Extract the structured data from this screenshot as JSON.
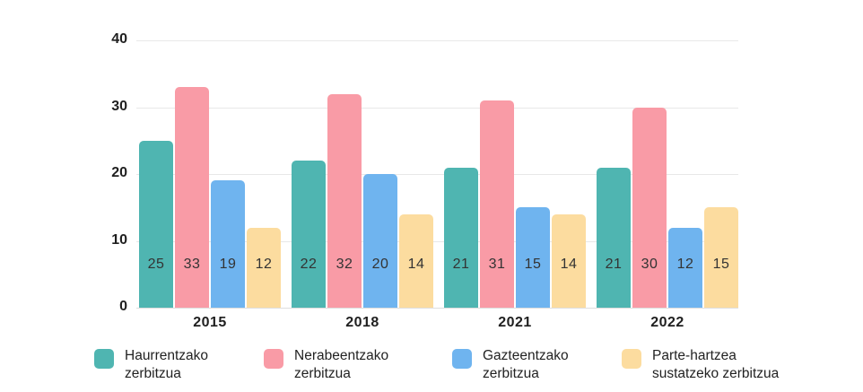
{
  "chart_data": {
    "type": "bar",
    "title": "",
    "xlabel": "",
    "ylabel": "",
    "categories": [
      "2015",
      "2018",
      "2021",
      "2022"
    ],
    "series": [
      {
        "name": "Haurrentzako zerbitzua",
        "color": "#4FB5B1",
        "values": [
          25,
          22,
          21,
          21
        ]
      },
      {
        "name": "Nerabeentzako zerbitzua",
        "color": "#F99BA6",
        "values": [
          33,
          32,
          31,
          30
        ]
      },
      {
        "name": "Gazteentzako zerbitzua",
        "color": "#6FB4EF",
        "values": [
          19,
          20,
          15,
          12
        ]
      },
      {
        "name": "Parte-hartzea sustatzeko zerbitzua",
        "color": "#FCDC9F",
        "values": [
          12,
          14,
          14,
          15
        ]
      }
    ],
    "ylim": [
      0,
      40
    ],
    "yticks": [
      0,
      10,
      20,
      30,
      40
    ],
    "grid": true,
    "bar_value_labels_shown": true,
    "legend_position": "bottom"
  },
  "legend": {
    "items": [
      {
        "lines": [
          "Haurrentzako",
          "zerbitzua"
        ],
        "color": "#4FB5B1"
      },
      {
        "lines": [
          "Nerabeentzako",
          "zerbitzua"
        ],
        "color": "#F99BA6"
      },
      {
        "lines": [
          "Gazteentzako",
          "zerbitzua"
        ],
        "color": "#6FB4EF"
      },
      {
        "lines": [
          "Parte-hartzea",
          "sustatzeko zerbitzua"
        ],
        "color": "#FCDC9F"
      }
    ]
  },
  "colors": {
    "background": "#ffffff",
    "gridline": "#e8e8e8",
    "text": "#1f1f1f"
  }
}
